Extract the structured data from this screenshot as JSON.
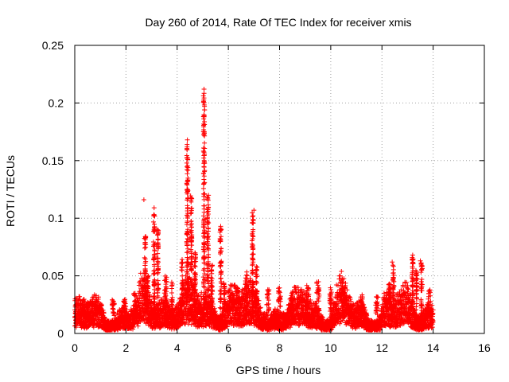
{
  "chart_data": {
    "type": "scatter",
    "title": "Day 260 of 2014, Rate Of TEC Index for receiver xmis",
    "xlabel": "GPS time / hours",
    "ylabel": "ROTI / TECUs",
    "xlim": [
      0,
      16
    ],
    "ylim": [
      0,
      0.25
    ],
    "x_ticks": [
      0,
      2,
      4,
      6,
      8,
      10,
      12,
      14,
      16
    ],
    "x_tick_labels": [
      "0",
      "2",
      "4",
      "6",
      "8",
      "10",
      "12",
      "14",
      "16"
    ],
    "y_ticks": [
      0,
      0.05,
      0.1,
      0.15,
      0.2,
      0.25
    ],
    "y_tick_labels": [
      "0",
      "0.05",
      "0.1",
      "0.15",
      "0.2",
      "0.25"
    ],
    "grid": true,
    "marker": "+",
    "series_color": "#ff0000",
    "data_extent_hours": [
      0,
      14
    ],
    "notable_peaks": [
      {
        "x": 2.7,
        "y": 0.116
      },
      {
        "x": 3.1,
        "y": 0.109
      },
      {
        "x": 4.4,
        "y": 0.168
      },
      {
        "x": 5.05,
        "y": 0.212
      },
      {
        "x": 5.7,
        "y": 0.093
      },
      {
        "x": 7.0,
        "y": 0.107
      },
      {
        "x": 12.4,
        "y": 0.062
      },
      {
        "x": 13.2,
        "y": 0.068
      },
      {
        "x": 13.5,
        "y": 0.063
      }
    ]
  }
}
